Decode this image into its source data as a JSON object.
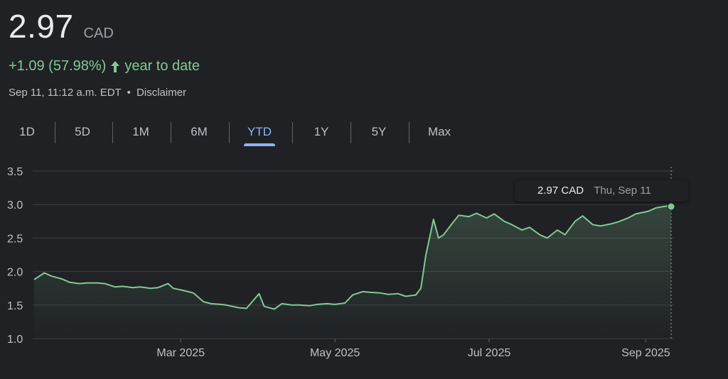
{
  "quote": {
    "price": "2.97",
    "currency": "CAD",
    "change": "+1.09 (57.98%)",
    "period_label": "year to date",
    "timestamp": "Sep 11, 11:12 a.m. EDT",
    "separator": "•",
    "disclaimer": "Disclaimer",
    "positive_color": "#81c995"
  },
  "tabs": [
    {
      "label": "1D",
      "active": false
    },
    {
      "label": "5D",
      "active": false
    },
    {
      "label": "1M",
      "active": false
    },
    {
      "label": "6M",
      "active": false
    },
    {
      "label": "YTD",
      "active": true
    },
    {
      "label": "1Y",
      "active": false
    },
    {
      "label": "5Y",
      "active": false
    },
    {
      "label": "Max",
      "active": false
    }
  ],
  "tooltip": {
    "value": "2.97 CAD",
    "date": "Thu, Sep 11"
  },
  "chart_data": {
    "type": "area",
    "ylim": [
      1.0,
      3.5
    ],
    "yticks": [
      "3.5",
      "3.0",
      "2.5",
      "2.0",
      "1.5",
      "1.0"
    ],
    "xticks": [
      "Mar 2025",
      "May 2025",
      "Jul 2025",
      "Sep 2025"
    ],
    "xlim": [
      "2025-01-02",
      "2025-09-11"
    ],
    "grid": true,
    "line_color": "#81c995",
    "series": [
      {
        "x": [
          "2025-01-02",
          "2025-01-06",
          "2025-01-09",
          "2025-01-13",
          "2025-01-16",
          "2025-01-20",
          "2025-01-23",
          "2025-01-27",
          "2025-01-30",
          "2025-02-03",
          "2025-02-06",
          "2025-02-10",
          "2025-02-13",
          "2025-02-17",
          "2025-02-20",
          "2025-02-24",
          "2025-02-26",
          "2025-03-03",
          "2025-03-06",
          "2025-03-10",
          "2025-03-13",
          "2025-03-17",
          "2025-03-19",
          "2025-03-24",
          "2025-03-27",
          "2025-04-01",
          "2025-04-03",
          "2025-04-07",
          "2025-04-10",
          "2025-04-14",
          "2025-04-17",
          "2025-04-21",
          "2025-04-24",
          "2025-04-28",
          "2025-05-01",
          "2025-05-05",
          "2025-05-08",
          "2025-05-12",
          "2025-05-15",
          "2025-05-19",
          "2025-05-22",
          "2025-05-26",
          "2025-05-29",
          "2025-06-02",
          "2025-06-04",
          "2025-06-06",
          "2025-06-09",
          "2025-06-11",
          "2025-06-13",
          "2025-06-16",
          "2025-06-19",
          "2025-06-23",
          "2025-06-26",
          "2025-06-30",
          "2025-07-03",
          "2025-07-07",
          "2025-07-10",
          "2025-07-14",
          "2025-07-17",
          "2025-07-21",
          "2025-07-24",
          "2025-07-28",
          "2025-07-31",
          "2025-08-04",
          "2025-08-07",
          "2025-08-11",
          "2025-08-14",
          "2025-08-18",
          "2025-08-21",
          "2025-08-25",
          "2025-08-28",
          "2025-09-02",
          "2025-09-05",
          "2025-09-08",
          "2025-09-10",
          "2025-09-11"
        ],
        "values": [
          1.88,
          1.98,
          1.93,
          1.89,
          1.84,
          1.82,
          1.83,
          1.83,
          1.82,
          1.77,
          1.78,
          1.76,
          1.77,
          1.75,
          1.76,
          1.82,
          1.75,
          1.71,
          1.68,
          1.55,
          1.52,
          1.51,
          1.5,
          1.46,
          1.45,
          1.67,
          1.48,
          1.44,
          1.52,
          1.5,
          1.5,
          1.49,
          1.51,
          1.52,
          1.51,
          1.53,
          1.65,
          1.7,
          1.69,
          1.68,
          1.66,
          1.67,
          1.63,
          1.65,
          1.75,
          2.25,
          2.78,
          2.5,
          2.55,
          2.7,
          2.84,
          2.82,
          2.87,
          2.8,
          2.86,
          2.75,
          2.7,
          2.62,
          2.66,
          2.55,
          2.5,
          2.62,
          2.55,
          2.75,
          2.83,
          2.7,
          2.68,
          2.71,
          2.74,
          2.8,
          2.86,
          2.9,
          2.95,
          2.97,
          2.98,
          2.97
        ]
      }
    ]
  }
}
